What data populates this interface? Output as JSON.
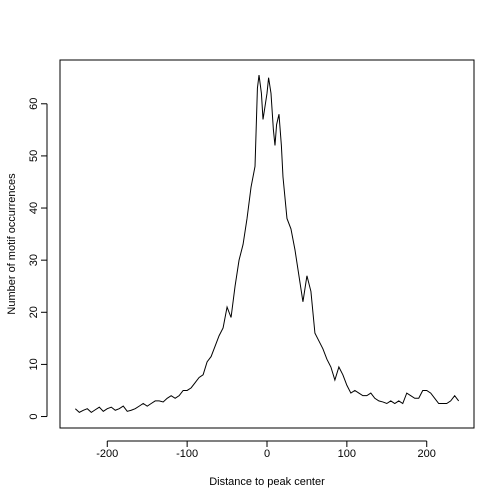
{
  "chart_data": {
    "type": "line",
    "xlabel": "Distance to peak center",
    "ylabel": "Number of motif occurrences",
    "x": [
      -240,
      -235,
      -230,
      -225,
      -220,
      -215,
      -210,
      -205,
      -200,
      -195,
      -190,
      -185,
      -180,
      -175,
      -170,
      -165,
      -160,
      -155,
      -150,
      -145,
      -140,
      -135,
      -130,
      -125,
      -120,
      -115,
      -110,
      -105,
      -100,
      -95,
      -90,
      -85,
      -80,
      -75,
      -70,
      -65,
      -60,
      -55,
      -50,
      -45,
      -40,
      -35,
      -30,
      -25,
      -20,
      -15,
      -12,
      -10,
      -7,
      -5,
      -2,
      0,
      2,
      5,
      8,
      10,
      12,
      15,
      18,
      20,
      25,
      30,
      35,
      40,
      45,
      50,
      55,
      60,
      65,
      70,
      75,
      80,
      85,
      90,
      95,
      100,
      105,
      110,
      115,
      120,
      125,
      130,
      135,
      140,
      145,
      150,
      155,
      160,
      165,
      170,
      175,
      180,
      185,
      190,
      195,
      200,
      205,
      210,
      215,
      220,
      225,
      230,
      235,
      240
    ],
    "series": [
      {
        "color": "#000000",
        "values": [
          1.5,
          0.8,
          1.2,
          1.5,
          0.8,
          1.3,
          1.8,
          1.0,
          1.5,
          1.8,
          1.2,
          1.5,
          2.0,
          1.0,
          1.2,
          1.5,
          2.0,
          2.5,
          2.0,
          2.5,
          3.0,
          3.0,
          2.8,
          3.5,
          4.0,
          3.5,
          4.0,
          5.0,
          5.0,
          5.5,
          6.5,
          7.5,
          8.0,
          10.5,
          11.5,
          13.5,
          15.5,
          17,
          21,
          19,
          25,
          30,
          33,
          38,
          44,
          48,
          63,
          65.5,
          62,
          57,
          60,
          62,
          65,
          62,
          55,
          52,
          56,
          58,
          52,
          46,
          38,
          36,
          32,
          27,
          22,
          27,
          24,
          16,
          14.5,
          13,
          11,
          9.5,
          7,
          9.5,
          8,
          6,
          4.5,
          5,
          4.5,
          4,
          4,
          4.5,
          3.5,
          3,
          2.8,
          2.5,
          3,
          2.5,
          3,
          2.5,
          4.5,
          4,
          3.5,
          3.5,
          5,
          5,
          4.5,
          3.5,
          2.5,
          2.5,
          2.5,
          3,
          4,
          3
        ]
      }
    ],
    "xlim": [
      -259.2,
      259.2
    ],
    "xticks": [
      -200,
      -100,
      0,
      100,
      200
    ],
    "ylim": [
      -2.2,
      68.4
    ],
    "yticks": [
      0,
      10,
      20,
      30,
      40,
      50,
      60
    ]
  }
}
